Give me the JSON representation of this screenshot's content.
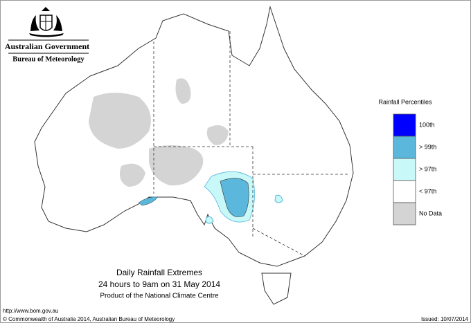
{
  "header": {
    "government": "Australian Government",
    "agency": "Bureau of Meteorology"
  },
  "legend": {
    "title": "Rainfall Percentiles",
    "items": [
      {
        "label": "100th",
        "color": "#0000ff"
      },
      {
        "label": "> 99th",
        "color": "#5bb8dc"
      },
      {
        "label": "> 97th",
        "color": "#c8f8f8"
      },
      {
        "label": "< 97th",
        "color": "#ffffff"
      },
      {
        "label": "No Data",
        "color": "#d4d4d4"
      }
    ]
  },
  "caption": {
    "title": "Daily Rainfall Extremes",
    "period": "24 hours to 9am on 31 May 2014",
    "product": "Product of the National Climate Centre"
  },
  "footer": {
    "url": "http://www.bom.gov.au",
    "copyright": "© Commonwealth of Australia 2014, Australian Bureau of Meteorology",
    "issued": "Issued: 10/07/2014"
  }
}
